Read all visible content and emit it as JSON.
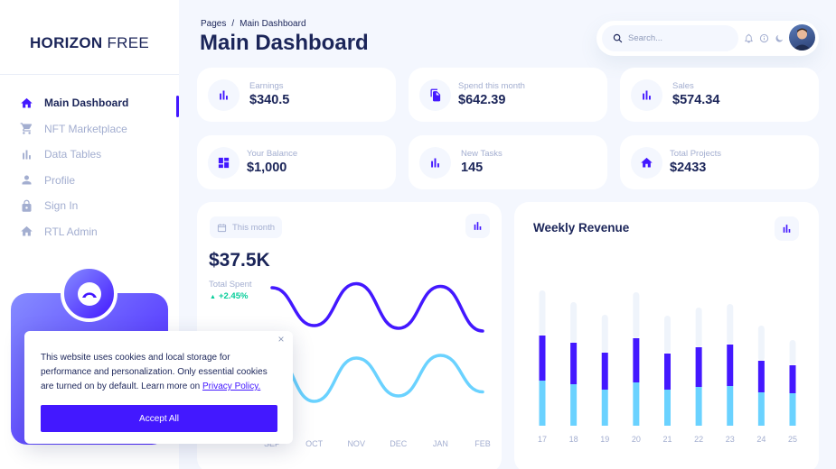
{
  "sidebar": {
    "brand_bold": "HORIZON",
    "brand_light": "FREE",
    "items": [
      {
        "label": "Main Dashboard",
        "icon": "home-icon"
      },
      {
        "label": "NFT Marketplace",
        "icon": "cart-icon"
      },
      {
        "label": "Data Tables",
        "icon": "bar-chart-icon"
      },
      {
        "label": "Profile",
        "icon": "person-icon"
      },
      {
        "label": "Sign In",
        "icon": "lock-icon"
      },
      {
        "label": "RTL Admin",
        "icon": "home-icon"
      }
    ]
  },
  "header": {
    "breadcrumb_root": "Pages",
    "breadcrumb_sep": "/",
    "breadcrumb_current": "Main Dashboard",
    "title": "Main Dashboard",
    "search_placeholder": "Search..."
  },
  "stats": [
    {
      "label": "Earnings",
      "value": "$340.5",
      "icon": "bar-chart-icon"
    },
    {
      "label": "Spend this month",
      "value": "$642.39",
      "icon": "documents-icon"
    },
    {
      "label": "Sales",
      "value": "$574.34",
      "icon": "bar-chart-icon"
    },
    {
      "label": "Your Balance",
      "value": "$1,000",
      "icon": "dashboard-icon"
    },
    {
      "label": "New Tasks",
      "value": "145",
      "icon": "bar-chart-icon"
    },
    {
      "label": "Total Projects",
      "value": "$2433",
      "icon": "home-icon"
    }
  ],
  "total_spent": {
    "chip": "This month",
    "value": "$37.5K",
    "label": "Total Spent",
    "change": "+2.45%"
  },
  "weekly_revenue": {
    "title": "Weekly Revenue"
  },
  "cookie": {
    "text": "This website uses cookies and local storage for performance and personalization. Only essential cookies are turned on by default. Learn more on ",
    "link": "Privacy Policy.",
    "accept": "Accept All",
    "close": "×"
  },
  "colors": {
    "brand": "#4318FF",
    "light_blue": "#6AD2FF",
    "light_purple": "#EFF4FB",
    "text": "#1B2559",
    "muted": "#A3AED0",
    "success": "#05CD99"
  },
  "chart_data": [
    {
      "type": "line",
      "x": [
        "SEP",
        "OCT",
        "NOV",
        "DEC",
        "JAN",
        "FEB"
      ],
      "series": [
        {
          "values": [
            100,
            72,
            103,
            70,
            101,
            68
          ],
          "color": "#4318FF"
        },
        {
          "values": [
            52,
            16,
            48,
            20,
            50,
            23
          ],
          "color": "#6AD2FF"
        }
      ],
      "grid": false,
      "legend": "none"
    },
    {
      "type": "bar",
      "stacked": true,
      "title": "Weekly Revenue",
      "categories": [
        "17",
        "18",
        "19",
        "20",
        "21",
        "22",
        "23",
        "24",
        "25"
      ],
      "series": [
        {
          "values": [
            50,
            46,
            40,
            48,
            40,
            43,
            44,
            37,
            36
          ],
          "color": "#6AD2FF"
        },
        {
          "values": [
            50,
            46,
            41,
            49,
            40,
            44,
            46,
            35,
            31
          ],
          "color": "#4318FF"
        },
        {
          "values": [
            50,
            45,
            42,
            51,
            42,
            44,
            45,
            39,
            28
          ],
          "color": "#EFF4FB"
        }
      ],
      "grid": false,
      "legend": "none"
    }
  ]
}
